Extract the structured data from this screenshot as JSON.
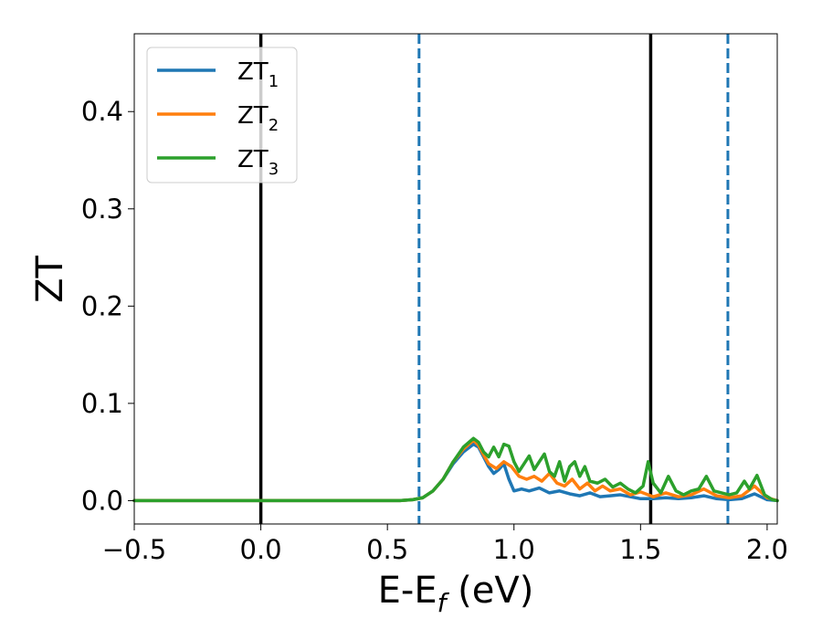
{
  "chart_data": {
    "type": "line",
    "xlabel_main": "E-E",
    "xlabel_sub": "f",
    "xlabel_unit": " (eV)",
    "ylabel": "ZT",
    "xlim": [
      -0.5,
      2.04
    ],
    "ylim": [
      -0.024,
      0.48
    ],
    "xticks": [
      -0.5,
      0.0,
      0.5,
      1.0,
      1.5,
      2.0
    ],
    "xtick_labels": [
      "−0.5",
      "0.0",
      "0.5",
      "1.0",
      "1.5",
      "2.0"
    ],
    "yticks": [
      0.0,
      0.1,
      0.2,
      0.3,
      0.4
    ],
    "ytick_labels": [
      "0.0",
      "0.1",
      "0.2",
      "0.3",
      "0.4"
    ],
    "grid": false,
    "legend_position": "top-left",
    "series": [
      {
        "name": "ZT",
        "name_sub": "1",
        "color": "#1f77b4",
        "points": [
          [
            -0.5,
            0.0
          ],
          [
            0.55,
            0.0
          ],
          [
            0.6,
            0.001
          ],
          [
            0.64,
            0.003
          ],
          [
            0.68,
            0.01
          ],
          [
            0.72,
            0.022
          ],
          [
            0.76,
            0.038
          ],
          [
            0.8,
            0.05
          ],
          [
            0.84,
            0.058
          ],
          [
            0.86,
            0.055
          ],
          [
            0.88,
            0.045
          ],
          [
            0.9,
            0.035
          ],
          [
            0.92,
            0.028
          ],
          [
            0.94,
            0.032
          ],
          [
            0.96,
            0.038
          ],
          [
            0.98,
            0.022
          ],
          [
            1.0,
            0.01
          ],
          [
            1.03,
            0.012
          ],
          [
            1.06,
            0.01
          ],
          [
            1.1,
            0.013
          ],
          [
            1.14,
            0.008
          ],
          [
            1.18,
            0.01
          ],
          [
            1.22,
            0.007
          ],
          [
            1.26,
            0.005
          ],
          [
            1.3,
            0.008
          ],
          [
            1.34,
            0.004
          ],
          [
            1.38,
            0.005
          ],
          [
            1.42,
            0.006
          ],
          [
            1.46,
            0.004
          ],
          [
            1.5,
            0.002
          ],
          [
            1.55,
            0.002
          ],
          [
            1.6,
            0.003
          ],
          [
            1.65,
            0.002
          ],
          [
            1.7,
            0.003
          ],
          [
            1.75,
            0.005
          ],
          [
            1.8,
            0.002
          ],
          [
            1.85,
            0.001
          ],
          [
            1.9,
            0.002
          ],
          [
            1.95,
            0.007
          ],
          [
            2.0,
            0.001
          ],
          [
            2.04,
            0.0
          ]
        ]
      },
      {
        "name": "ZT",
        "name_sub": "2",
        "color": "#ff7f0e",
        "points": [
          [
            -0.5,
            0.0
          ],
          [
            0.55,
            0.0
          ],
          [
            0.6,
            0.001
          ],
          [
            0.64,
            0.003
          ],
          [
            0.68,
            0.01
          ],
          [
            0.72,
            0.022
          ],
          [
            0.76,
            0.04
          ],
          [
            0.8,
            0.053
          ],
          [
            0.84,
            0.062
          ],
          [
            0.86,
            0.057
          ],
          [
            0.88,
            0.047
          ],
          [
            0.9,
            0.038
          ],
          [
            0.93,
            0.033
          ],
          [
            0.96,
            0.04
          ],
          [
            0.99,
            0.035
          ],
          [
            1.02,
            0.025
          ],
          [
            1.05,
            0.022
          ],
          [
            1.08,
            0.025
          ],
          [
            1.11,
            0.02
          ],
          [
            1.14,
            0.028
          ],
          [
            1.17,
            0.018
          ],
          [
            1.2,
            0.015
          ],
          [
            1.23,
            0.022
          ],
          [
            1.26,
            0.012
          ],
          [
            1.29,
            0.018
          ],
          [
            1.32,
            0.01
          ],
          [
            1.35,
            0.015
          ],
          [
            1.38,
            0.01
          ],
          [
            1.42,
            0.012
          ],
          [
            1.46,
            0.006
          ],
          [
            1.5,
            0.009
          ],
          [
            1.55,
            0.004
          ],
          [
            1.6,
            0.008
          ],
          [
            1.65,
            0.004
          ],
          [
            1.7,
            0.006
          ],
          [
            1.75,
            0.012
          ],
          [
            1.8,
            0.005
          ],
          [
            1.85,
            0.003
          ],
          [
            1.9,
            0.005
          ],
          [
            1.95,
            0.015
          ],
          [
            2.0,
            0.003
          ],
          [
            2.04,
            0.0
          ]
        ]
      },
      {
        "name": "ZT",
        "name_sub": "3",
        "color": "#2ca02c",
        "points": [
          [
            -0.5,
            0.0
          ],
          [
            0.55,
            0.0
          ],
          [
            0.6,
            0.001
          ],
          [
            0.64,
            0.003
          ],
          [
            0.68,
            0.01
          ],
          [
            0.72,
            0.022
          ],
          [
            0.76,
            0.04
          ],
          [
            0.8,
            0.055
          ],
          [
            0.84,
            0.064
          ],
          [
            0.86,
            0.06
          ],
          [
            0.88,
            0.05
          ],
          [
            0.9,
            0.045
          ],
          [
            0.92,
            0.055
          ],
          [
            0.94,
            0.045
          ],
          [
            0.96,
            0.058
          ],
          [
            0.98,
            0.056
          ],
          [
            1.0,
            0.04
          ],
          [
            1.02,
            0.03
          ],
          [
            1.04,
            0.038
          ],
          [
            1.06,
            0.046
          ],
          [
            1.08,
            0.032
          ],
          [
            1.1,
            0.04
          ],
          [
            1.12,
            0.048
          ],
          [
            1.14,
            0.03
          ],
          [
            1.16,
            0.025
          ],
          [
            1.18,
            0.04
          ],
          [
            1.2,
            0.02
          ],
          [
            1.22,
            0.035
          ],
          [
            1.24,
            0.04
          ],
          [
            1.26,
            0.025
          ],
          [
            1.28,
            0.035
          ],
          [
            1.3,
            0.02
          ],
          [
            1.33,
            0.018
          ],
          [
            1.36,
            0.022
          ],
          [
            1.39,
            0.014
          ],
          [
            1.42,
            0.018
          ],
          [
            1.45,
            0.012
          ],
          [
            1.48,
            0.008
          ],
          [
            1.51,
            0.015
          ],
          [
            1.53,
            0.04
          ],
          [
            1.55,
            0.018
          ],
          [
            1.58,
            0.008
          ],
          [
            1.61,
            0.025
          ],
          [
            1.64,
            0.01
          ],
          [
            1.67,
            0.006
          ],
          [
            1.7,
            0.01
          ],
          [
            1.73,
            0.012
          ],
          [
            1.76,
            0.025
          ],
          [
            1.79,
            0.01
          ],
          [
            1.82,
            0.008
          ],
          [
            1.85,
            0.006
          ],
          [
            1.88,
            0.008
          ],
          [
            1.91,
            0.02
          ],
          [
            1.93,
            0.012
          ],
          [
            1.96,
            0.026
          ],
          [
            1.99,
            0.006
          ],
          [
            2.02,
            0.001
          ],
          [
            2.04,
            0.0
          ]
        ]
      }
    ],
    "vertical_lines": [
      {
        "x": 0.0,
        "style": "solid",
        "color": "#000000"
      },
      {
        "x": 1.54,
        "style": "solid",
        "color": "#000000"
      },
      {
        "x": 0.625,
        "style": "dashed",
        "color": "#1f77b4"
      },
      {
        "x": 1.845,
        "style": "dashed",
        "color": "#1f77b4"
      }
    ]
  }
}
